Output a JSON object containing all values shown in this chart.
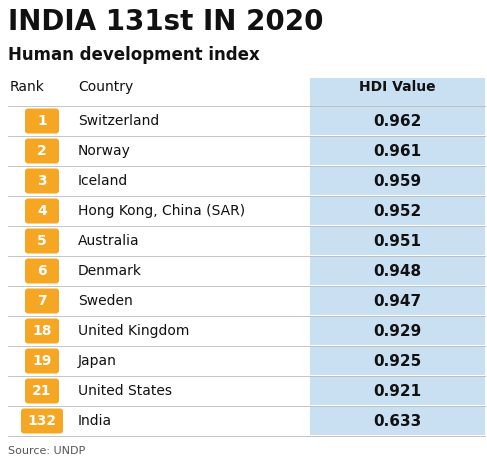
{
  "title": "INDIA 131st IN 2020",
  "subtitle": "Human development index",
  "col_rank": "Rank",
  "col_country": "Country",
  "col_hdi": "HDI Value",
  "rows": [
    {
      "rank": "1",
      "country": "Switzerland",
      "hdi": "0.962"
    },
    {
      "rank": "2",
      "country": "Norway",
      "hdi": "0.961"
    },
    {
      "rank": "3",
      "country": "Iceland",
      "hdi": "0.959"
    },
    {
      "rank": "4",
      "country": "Hong Kong, China (SAR)",
      "hdi": "0.952"
    },
    {
      "rank": "5",
      "country": "Australia",
      "hdi": "0.951"
    },
    {
      "rank": "6",
      "country": "Denmark",
      "hdi": "0.948"
    },
    {
      "rank": "7",
      "country": "Sweden",
      "hdi": "0.947"
    },
    {
      "rank": "18",
      "country": "United Kingdom",
      "hdi": "0.929"
    },
    {
      "rank": "19",
      "country": "Japan",
      "hdi": "0.925"
    },
    {
      "rank": "21",
      "country": "United States",
      "hdi": "0.921"
    },
    {
      "rank": "132",
      "country": "India",
      "hdi": "0.633"
    }
  ],
  "source": "Source: UNDP",
  "badge_color": "#F5A623",
  "badge_text_color": "#FFFFFF",
  "hdi_col_bg": "#C9DFF2",
  "bg_color": "#FFFFFF",
  "title_color": "#111111",
  "subtitle_color": "#111111",
  "header_color": "#111111",
  "row_text_color": "#111111",
  "hdi_value_color": "#111111",
  "source_color": "#555555",
  "row_line_color": "#BBBBBB",
  "title_fontsize": 20,
  "subtitle_fontsize": 12,
  "header_fontsize": 10,
  "row_fontsize": 10,
  "source_fontsize": 8
}
